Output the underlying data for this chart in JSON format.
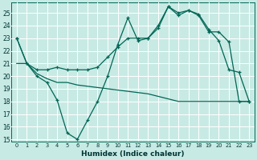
{
  "xlabel": "Humidex (Indice chaleur)",
  "bg_color": "#c8eae4",
  "grid_color": "#ffffff",
  "line_color": "#006655",
  "xlim": [
    -0.5,
    23.5
  ],
  "ylim": [
    14.8,
    25.8
  ],
  "yticks": [
    15,
    16,
    17,
    18,
    19,
    20,
    21,
    22,
    23,
    24,
    25
  ],
  "xticks": [
    0,
    1,
    2,
    3,
    4,
    5,
    6,
    7,
    8,
    9,
    10,
    11,
    12,
    13,
    14,
    15,
    16,
    17,
    18,
    19,
    20,
    21,
    22,
    23
  ],
  "s1_x": [
    0,
    1,
    2,
    3,
    4,
    5,
    6,
    7,
    8,
    9,
    10,
    11,
    12,
    13,
    14,
    15,
    16,
    17,
    18,
    19,
    20,
    21,
    22,
    23
  ],
  "s1_y": [
    23,
    21,
    20,
    19.5,
    18.1,
    15.5,
    15,
    16.5,
    18,
    20,
    22.5,
    24.6,
    22.8,
    23,
    23.8,
    25.5,
    25,
    25.2,
    24.9,
    23.7,
    22.8,
    20.5,
    20.3,
    18
  ],
  "s2_x": [
    0,
    1,
    2,
    3,
    4,
    5,
    6,
    7,
    8,
    9,
    10,
    11,
    12,
    13,
    14,
    15,
    16,
    17,
    18,
    19,
    20,
    21,
    22,
    23
  ],
  "s2_y": [
    23,
    21,
    20.5,
    20.5,
    20.7,
    20.5,
    20.5,
    20.5,
    20.7,
    21.5,
    22.3,
    23,
    23,
    23,
    24,
    25.5,
    24.8,
    25.2,
    24.8,
    23.5,
    23.5,
    22.7,
    18,
    18
  ],
  "s3_x": [
    0,
    1,
    2,
    3,
    4,
    5,
    6,
    7,
    8,
    9,
    10,
    11,
    12,
    13,
    14,
    15,
    16,
    17,
    18,
    19,
    20,
    21,
    22,
    23
  ],
  "s3_y": [
    21,
    21,
    20.2,
    19.8,
    19.5,
    19.5,
    19.3,
    19.2,
    19.1,
    19.0,
    18.9,
    18.8,
    18.7,
    18.6,
    18.4,
    18.2,
    18.0,
    18.0,
    18,
    18,
    18,
    18,
    18,
    18
  ]
}
